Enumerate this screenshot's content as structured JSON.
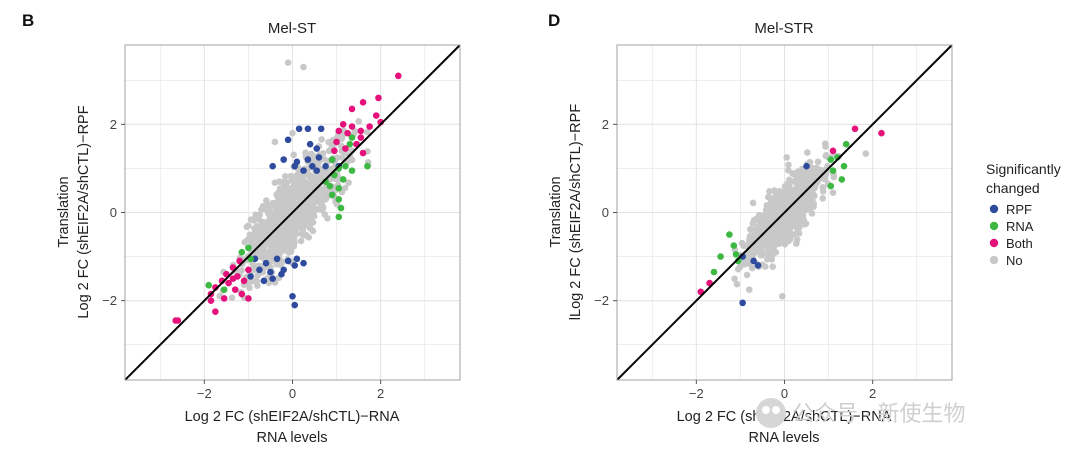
{
  "colors": {
    "RPF": "#2e4b9e",
    "RNA": "#3cb843",
    "Both": "#e5127c",
    "No": "#c8c8c8",
    "grid": "#e4e4e4",
    "border": "#a0a0a0",
    "diagonal": "#000000"
  },
  "legend": {
    "title_line1": "Significantly",
    "title_line2": "changed",
    "items": [
      "RPF",
      "RNA",
      "Both",
      "No"
    ]
  },
  "watermark": {
    "text": "公众号 · 新使生物"
  },
  "chart_data": [
    {
      "type": "scatter",
      "panel_letter": "B",
      "title": "Mel-ST",
      "xlabel_line1": "Log 2 FC (shEIF2A/shCTL)−RNA",
      "xlabel_line2": "RNA levels",
      "ylabel_line1": "Translation",
      "ylabel_line2": "Log 2 FC (shEIF2A/shCTL)−RPF",
      "xlim": [
        -3.8,
        3.8
      ],
      "ylim": [
        -3.8,
        3.8
      ],
      "xticks": [
        -2,
        0,
        2
      ],
      "yticks": [
        -2,
        0,
        2
      ],
      "xtick_labels": [
        "−2",
        "0",
        "2"
      ],
      "ytick_labels": [
        "−2",
        "0",
        "2"
      ],
      "diagonal": "y = x",
      "ns_cloud": {
        "n": 900,
        "x_sd": 0.55,
        "y_noise_sd": 0.42,
        "seed": 7
      },
      "ns_extra": [
        [
          -0.1,
          3.4
        ],
        [
          0.25,
          3.3
        ],
        [
          0.0,
          1.8
        ],
        [
          -0.4,
          1.6
        ],
        [
          0.6,
          1.5
        ],
        [
          -1.0,
          -0.3
        ],
        [
          0.9,
          0.5
        ]
      ],
      "series": [
        {
          "name": "RPF",
          "points": [
            [
              0.15,
              1.9
            ],
            [
              0.35,
              1.9
            ],
            [
              0.65,
              1.9
            ],
            [
              -0.1,
              1.65
            ],
            [
              0.4,
              1.55
            ],
            [
              0.55,
              1.45
            ],
            [
              -0.2,
              1.2
            ],
            [
              0.1,
              1.15
            ],
            [
              0.35,
              1.2
            ],
            [
              0.6,
              1.25
            ],
            [
              0.9,
              1.2
            ],
            [
              0.05,
              1.05
            ],
            [
              0.45,
              1.05
            ],
            [
              0.75,
              1.05
            ],
            [
              1.05,
              1.05
            ],
            [
              -0.45,
              1.05
            ],
            [
              0.55,
              0.95
            ],
            [
              0.25,
              0.95
            ],
            [
              -0.85,
              -1.05
            ],
            [
              -0.6,
              -1.15
            ],
            [
              -0.35,
              -1.05
            ],
            [
              -0.1,
              -1.1
            ],
            [
              0.05,
              -1.2
            ],
            [
              0.25,
              -1.15
            ],
            [
              -0.75,
              -1.3
            ],
            [
              -0.5,
              -1.35
            ],
            [
              -0.95,
              -1.45
            ],
            [
              -0.65,
              -1.55
            ],
            [
              -0.45,
              -1.5
            ],
            [
              -0.25,
              -1.4
            ],
            [
              0.0,
              -1.9
            ],
            [
              0.05,
              -2.1
            ],
            [
              -0.2,
              -1.3
            ],
            [
              0.1,
              -1.05
            ]
          ]
        },
        {
          "name": "RNA",
          "points": [
            [
              1.35,
              1.7
            ],
            [
              1.3,
              1.55
            ],
            [
              0.9,
              1.2
            ],
            [
              1.05,
              1.0
            ],
            [
              1.2,
              1.05
            ],
            [
              0.95,
              0.85
            ],
            [
              1.15,
              0.75
            ],
            [
              0.85,
              0.6
            ],
            [
              1.05,
              0.55
            ],
            [
              0.9,
              0.4
            ],
            [
              1.05,
              0.3
            ],
            [
              1.1,
              0.1
            ],
            [
              0.75,
              0.7
            ],
            [
              1.7,
              1.05
            ],
            [
              1.05,
              -0.1
            ],
            [
              1.35,
              0.95
            ],
            [
              -1.0,
              -0.8
            ],
            [
              -1.15,
              -0.9
            ],
            [
              -0.95,
              -1.05
            ],
            [
              -1.9,
              -1.65
            ],
            [
              -1.55,
              -1.75
            ]
          ]
        },
        {
          "name": "Both",
          "points": [
            [
              2.4,
              3.1
            ],
            [
              1.95,
              2.6
            ],
            [
              1.35,
              2.35
            ],
            [
              1.6,
              2.5
            ],
            [
              1.9,
              2.2
            ],
            [
              2.0,
              2.05
            ],
            [
              1.15,
              2.0
            ],
            [
              1.35,
              1.95
            ],
            [
              1.55,
              1.85
            ],
            [
              1.05,
              1.85
            ],
            [
              1.25,
              1.8
            ],
            [
              1.75,
              1.95
            ],
            [
              1.55,
              1.7
            ],
            [
              1.0,
              1.6
            ],
            [
              1.45,
              1.55
            ],
            [
              1.2,
              1.45
            ],
            [
              1.6,
              1.35
            ],
            [
              0.95,
              1.4
            ],
            [
              -1.2,
              -1.1
            ],
            [
              -1.35,
              -1.25
            ],
            [
              -1.5,
              -1.4
            ],
            [
              -1.0,
              -1.3
            ],
            [
              -1.25,
              -1.45
            ],
            [
              -1.6,
              -1.55
            ],
            [
              -1.75,
              -1.7
            ],
            [
              -1.85,
              -1.85
            ],
            [
              -1.45,
              -1.6
            ],
            [
              -1.3,
              -1.75
            ],
            [
              -1.1,
              -1.55
            ],
            [
              -1.55,
              -1.95
            ],
            [
              -1.85,
              -2.0
            ],
            [
              -1.0,
              -1.95
            ],
            [
              -1.75,
              -2.25
            ],
            [
              -1.15,
              -1.85
            ],
            [
              -2.6,
              -2.45
            ],
            [
              -2.65,
              -2.45
            ],
            [
              -1.35,
              -1.5
            ]
          ]
        }
      ]
    },
    {
      "type": "scatter",
      "panel_letter": "D",
      "title": "Mel-STR",
      "xlabel_line1": "Log 2 FC (shEIF2A/shCTL)−RNA",
      "xlabel_line2": "RNA levels",
      "ylabel_line1": "Translation",
      "ylabel_line2": "lLog 2 FC (shEIF2A/shCTL)−RPF",
      "xlim": [
        -3.8,
        3.8
      ],
      "ylim": [
        -3.8,
        3.8
      ],
      "xticks": [
        -2,
        0,
        2
      ],
      "yticks": [
        -2,
        0,
        2
      ],
      "xtick_labels": [
        "−2",
        "0",
        "2"
      ],
      "ytick_labels": [
        "−2",
        "0",
        "2"
      ],
      "diagonal": "y = x",
      "ns_cloud": {
        "n": 750,
        "x_sd": 0.4,
        "y_noise_sd": 0.32,
        "seed": 11
      },
      "ns_extra": [
        [
          0.05,
          1.25
        ],
        [
          -0.05,
          -1.9
        ],
        [
          -0.8,
          -1.75
        ],
        [
          1.0,
          1.25
        ],
        [
          1.1,
          0.45
        ],
        [
          0.55,
          0.95
        ]
      ],
      "series": [
        {
          "name": "RPF",
          "points": [
            [
              0.5,
              1.05
            ],
            [
              -0.95,
              -1.0
            ],
            [
              -0.7,
              -1.1
            ],
            [
              -0.6,
              -1.2
            ],
            [
              -0.95,
              -2.05
            ]
          ]
        },
        {
          "name": "RNA",
          "points": [
            [
              1.4,
              1.55
            ],
            [
              1.05,
              1.2
            ],
            [
              1.2,
              1.25
            ],
            [
              1.35,
              1.05
            ],
            [
              1.1,
              0.95
            ],
            [
              1.3,
              0.75
            ],
            [
              1.05,
              0.6
            ],
            [
              -1.25,
              -0.5
            ],
            [
              -1.15,
              -0.75
            ],
            [
              -1.1,
              -0.95
            ],
            [
              -1.45,
              -1.0
            ],
            [
              -1.6,
              -1.35
            ],
            [
              -1.05,
              -1.1
            ]
          ]
        },
        {
          "name": "Both",
          "points": [
            [
              1.6,
              1.9
            ],
            [
              2.2,
              1.8
            ],
            [
              1.1,
              1.4
            ],
            [
              -1.9,
              -1.8
            ],
            [
              -1.7,
              -1.6
            ]
          ]
        }
      ]
    }
  ]
}
